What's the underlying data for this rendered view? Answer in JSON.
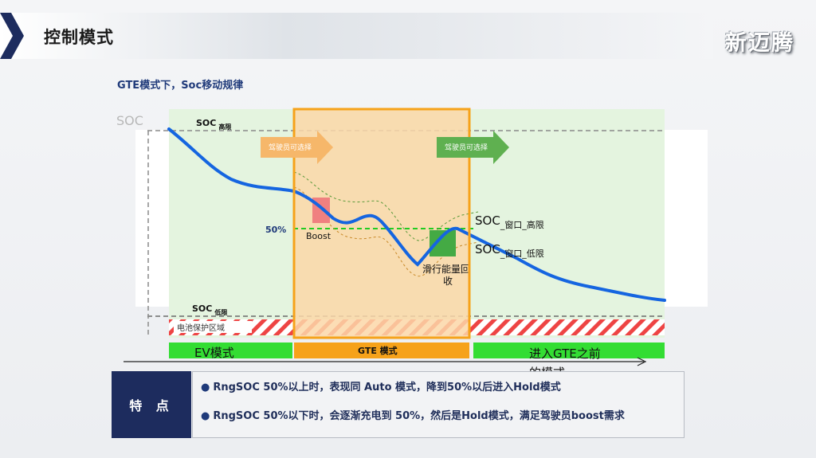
{
  "header": {
    "title": "控制模式",
    "logo": "新迈腾"
  },
  "subtitle": "GTE模式下，Soc移动规律",
  "diagram": {
    "soc_axis_label": "SOC",
    "soc_high": {
      "main": "SOC",
      "sub": "高限"
    },
    "soc_low": {
      "main": "SOC",
      "sub": "低限"
    },
    "battery_zone": "电池保护区域",
    "fifty": "50%",
    "driver_select_1": "驾驶员可选择",
    "driver_select_2": "驾驶员可选择",
    "boost": "Boost",
    "regen": "滑行能量回收",
    "window_high": {
      "main": "SOC",
      "sub": "_窗口_高限"
    },
    "window_low": {
      "main": "SOC",
      "sub": "_窗口_低限"
    },
    "mode_ev": "EV模式",
    "mode_gte": "GTE 模式",
    "mode_next_1": "进入GTE之前",
    "mode_next_2": "的模式"
  },
  "features": {
    "label": "特 点",
    "items": [
      "RngSOC 50%以上时，表现同 Auto 模式，降到50%以后进入Hold模式",
      "RngSOC 50%以下时，会逐渐充电到 50%，然后是Hold模式，满足驾驶员boost需求"
    ]
  },
  "colors": {
    "accent": "#1f3a7a",
    "curve": "#1565e0",
    "gte": "#f6a21a",
    "ev": "#33dd33"
  }
}
